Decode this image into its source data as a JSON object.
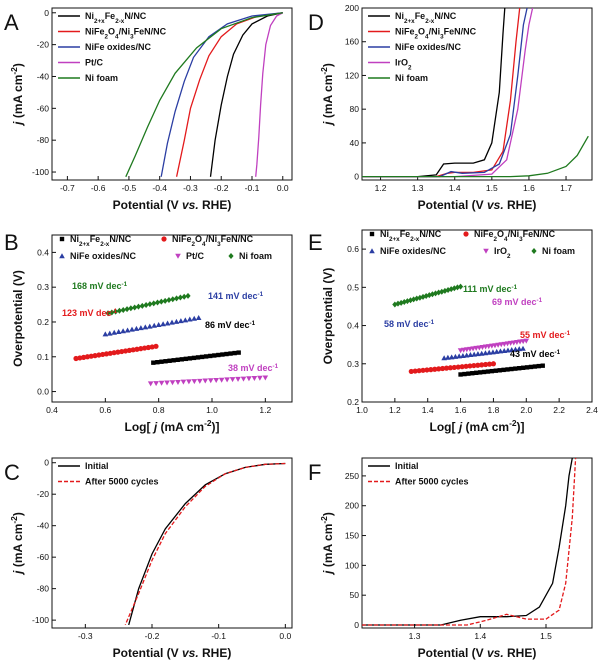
{
  "chart_data": [
    {
      "panel": "A",
      "type": "line",
      "xlabel": "Potential (V vs. RHE)",
      "ylabel": "j (mA cm-2)",
      "xlim": [
        -0.75,
        0.03
      ],
      "ylim": [
        -105,
        3
      ],
      "xticks": [
        "-0.7",
        "-0.6",
        "-0.5",
        "-0.4",
        "-0.3",
        "-0.2",
        "-0.1",
        "0.0"
      ],
      "yticks": [
        "0",
        "-20",
        "-40",
        "-60",
        "-80",
        "-100"
      ],
      "legend_position": "top-left",
      "series": [
        {
          "name": "Ni2+xFe2-xN/NC",
          "color": "#000000",
          "x": [
            0.0,
            -0.05,
            -0.1,
            -0.13,
            -0.16,
            -0.18,
            -0.2,
            -0.22,
            -0.235
          ],
          "y": [
            0,
            -2,
            -7,
            -14,
            -26,
            -40,
            -58,
            -80,
            -103
          ]
        },
        {
          "name": "NiFe2O4/Ni3FeN/NC",
          "color": "#e31a1c",
          "x": [
            0.0,
            -0.08,
            -0.15,
            -0.2,
            -0.24,
            -0.27,
            -0.3,
            -0.32,
            -0.345
          ],
          "y": [
            0,
            -2,
            -7,
            -15,
            -27,
            -42,
            -60,
            -80,
            -103
          ]
        },
        {
          "name": "NiFe oxides/NC",
          "color": "#2b3ea3",
          "x": [
            0.0,
            -0.1,
            -0.18,
            -0.24,
            -0.29,
            -0.32,
            -0.35,
            -0.375,
            -0.395
          ],
          "y": [
            0,
            -2,
            -7,
            -15,
            -28,
            -43,
            -62,
            -82,
            -103
          ]
        },
        {
          "name": "Pt/C",
          "color": "#c040c0",
          "x": [
            0.0,
            -0.02,
            -0.04,
            -0.055,
            -0.065,
            -0.072,
            -0.078,
            -0.084,
            -0.088
          ],
          "y": [
            0,
            -2,
            -8,
            -20,
            -38,
            -58,
            -78,
            -95,
            -103
          ]
        },
        {
          "name": "Ni foam",
          "color": "#1f7a1f",
          "x": [
            0.0,
            -0.1,
            -0.2,
            -0.28,
            -0.35,
            -0.4,
            -0.44,
            -0.48,
            -0.51
          ],
          "y": [
            0,
            -3,
            -10,
            -22,
            -38,
            -55,
            -72,
            -90,
            -103
          ]
        }
      ]
    },
    {
      "panel": "B",
      "type": "scatter",
      "xlabel": "Log[ j (mA cm-2)]",
      "ylabel": "Overpotential (V)",
      "xlim": [
        0.4,
        1.3
      ],
      "ylim": [
        -0.03,
        0.45
      ],
      "xticks": [
        "0.4",
        "0.6",
        "0.8",
        "1.0",
        "1.2"
      ],
      "yticks": [
        "0.0",
        "0.1",
        "0.2",
        "0.3",
        "0.4"
      ],
      "legend_position": "top",
      "series": [
        {
          "name": "Ni2+xFe2-xN/NC",
          "color": "#000000",
          "marker": "square",
          "x": [
            0.78,
            1.1
          ],
          "y": [
            0.083,
            0.112
          ],
          "slope_label": "86 mV dec-1"
        },
        {
          "name": "NiFe2O4/Ni3FeN/NC",
          "color": "#e31a1c",
          "marker": "circle",
          "x": [
            0.49,
            0.79
          ],
          "y": [
            0.095,
            0.13
          ],
          "slope_label": "123 mV dec-1"
        },
        {
          "name": "NiFe oxides/NC",
          "color": "#2b3ea3",
          "marker": "triangle-up",
          "x": [
            0.6,
            0.95
          ],
          "y": [
            0.165,
            0.212
          ],
          "slope_label": "141 mV dec-1"
        },
        {
          "name": "Pt/C",
          "color": "#c040c0",
          "marker": "triangle-down",
          "x": [
            0.77,
            1.2
          ],
          "y": [
            0.023,
            0.04
          ],
          "slope_label": "38 mV dec-1"
        },
        {
          "name": "Ni foam",
          "color": "#1f7a1f",
          "marker": "diamond",
          "x": [
            0.61,
            0.91
          ],
          "y": [
            0.225,
            0.275
          ],
          "slope_label": "168 mV dec-1"
        }
      ]
    },
    {
      "panel": "C",
      "type": "line",
      "xlabel": "Potential (V vs. RHE)",
      "ylabel": "j (mA cm-2)",
      "xlim": [
        -0.35,
        0.01
      ],
      "ylim": [
        -105,
        3
      ],
      "xticks": [
        "-0.3",
        "-0.2",
        "-0.1",
        "0.0"
      ],
      "yticks": [
        "0",
        "-20",
        "-40",
        "-60",
        "-80",
        "-100"
      ],
      "legend_position": "top-left",
      "series": [
        {
          "name": "Initial",
          "color": "#000000",
          "dash": false,
          "x": [
            0.0,
            -0.03,
            -0.06,
            -0.09,
            -0.12,
            -0.15,
            -0.18,
            -0.2,
            -0.22,
            -0.235
          ],
          "y": [
            -0.5,
            -1,
            -3,
            -7,
            -14,
            -26,
            -42,
            -58,
            -80,
            -103
          ]
        },
        {
          "name": "After 5000 cycles",
          "color": "#e31a1c",
          "dash": true,
          "x": [
            0.0,
            -0.03,
            -0.06,
            -0.09,
            -0.12,
            -0.15,
            -0.18,
            -0.2,
            -0.22,
            -0.24
          ],
          "y": [
            -0.5,
            -1,
            -3,
            -7,
            -15,
            -28,
            -45,
            -62,
            -83,
            -103
          ]
        }
      ]
    },
    {
      "panel": "D",
      "type": "line",
      "xlabel": "Potential (V vs. RHE)",
      "ylabel": "j (mA cm-2)",
      "xlim": [
        1.15,
        1.77
      ],
      "ylim": [
        -4,
        200
      ],
      "xticks": [
        "1.2",
        "1.3",
        "1.4",
        "1.5",
        "1.6",
        "1.7"
      ],
      "yticks": [
        "0",
        "40",
        "80",
        "120",
        "160",
        "200"
      ],
      "legend_position": "top-left",
      "series": [
        {
          "name": "Ni2+xFe2-xN/NC",
          "color": "#000000",
          "x": [
            1.15,
            1.3,
            1.35,
            1.37,
            1.4,
            1.45,
            1.48,
            1.5,
            1.52,
            1.53,
            1.535
          ],
          "y": [
            0,
            0,
            2,
            15,
            16,
            16,
            20,
            40,
            100,
            170,
            200
          ]
        },
        {
          "name": "NiFe2O4/Ni3FeN/NC",
          "color": "#e31a1c",
          "x": [
            1.15,
            1.35,
            1.38,
            1.4,
            1.45,
            1.5,
            1.53,
            1.55,
            1.565,
            1.575
          ],
          "y": [
            0,
            0,
            4,
            5,
            5,
            8,
            30,
            90,
            160,
            200
          ]
        },
        {
          "name": "NiFe oxides/NC",
          "color": "#2b3ea3",
          "x": [
            1.15,
            1.36,
            1.39,
            1.42,
            1.48,
            1.52,
            1.55,
            1.57,
            1.585,
            1.595
          ],
          "y": [
            0,
            0,
            6,
            4,
            5,
            15,
            50,
            120,
            180,
            200
          ]
        },
        {
          "name": "IrO2",
          "color": "#c040c0",
          "x": [
            1.15,
            1.4,
            1.5,
            1.54,
            1.57,
            1.59,
            1.6,
            1.61
          ],
          "y": [
            0,
            0,
            3,
            20,
            80,
            150,
            180,
            200
          ]
        },
        {
          "name": "Ni foam",
          "color": "#1f7a1f",
          "x": [
            1.15,
            1.55,
            1.6,
            1.65,
            1.7,
            1.73,
            1.76
          ],
          "y": [
            0,
            0,
            1,
            4,
            12,
            25,
            48
          ]
        }
      ]
    },
    {
      "panel": "E",
      "type": "scatter",
      "xlabel": "Log[ j (mA cm-2)]",
      "ylabel": "Overpotential (V)",
      "xlim": [
        1.0,
        2.4
      ],
      "ylim": [
        0.2,
        0.65
      ],
      "xticks": [
        "1.0",
        "1.2",
        "1.4",
        "1.6",
        "1.8",
        "2.0",
        "2.2",
        "2.4"
      ],
      "yticks": [
        "0.2",
        "0.3",
        "0.4",
        "0.5",
        "0.6"
      ],
      "legend_position": "top",
      "series": [
        {
          "name": "Ni2+xFe2-xN/NC",
          "color": "#000000",
          "marker": "square",
          "x": [
            1.6,
            2.1
          ],
          "y": [
            0.272,
            0.295
          ],
          "slope_label": "43 mV dec-1"
        },
        {
          "name": "NiFe2O4/Ni3FeN/NC",
          "color": "#e31a1c",
          "marker": "circle",
          "x": [
            1.3,
            1.8
          ],
          "y": [
            0.28,
            0.3
          ],
          "slope_label": "55 mV dec-1"
        },
        {
          "name": "NiFe oxides/NC",
          "color": "#2b3ea3",
          "marker": "triangle-up",
          "x": [
            1.5,
            1.98
          ],
          "y": [
            0.315,
            0.34
          ],
          "slope_label": "58 mV dec-1"
        },
        {
          "name": "IrO2",
          "color": "#c040c0",
          "marker": "triangle-down",
          "x": [
            1.6,
            2.0
          ],
          "y": [
            0.335,
            0.36
          ],
          "slope_label": "69 mV dec-1"
        },
        {
          "name": "Ni foam",
          "color": "#1f7a1f",
          "marker": "diamond",
          "x": [
            1.2,
            1.6
          ],
          "y": [
            0.455,
            0.502
          ],
          "slope_label": "111 mV dec-1"
        }
      ]
    },
    {
      "panel": "F",
      "type": "line",
      "xlabel": "Potential (V vs. RHE)",
      "ylabel": "j (mA cm-2)",
      "xlim": [
        1.22,
        1.57
      ],
      "ylim": [
        -5,
        280
      ],
      "xticks": [
        "1.3",
        "1.4",
        "1.5"
      ],
      "yticks": [
        "0",
        "50",
        "100",
        "150",
        "200",
        "250"
      ],
      "legend_position": "top-left",
      "series": [
        {
          "name": "Initial",
          "color": "#000000",
          "dash": false,
          "x": [
            1.22,
            1.34,
            1.37,
            1.4,
            1.44,
            1.47,
            1.49,
            1.51,
            1.52,
            1.53,
            1.535,
            1.54
          ],
          "y": [
            0,
            0,
            8,
            14,
            14,
            16,
            30,
            70,
            130,
            200,
            250,
            280
          ]
        },
        {
          "name": "After 5000 cycles",
          "color": "#e31a1c",
          "dash": true,
          "x": [
            1.22,
            1.38,
            1.41,
            1.44,
            1.47,
            1.5,
            1.52,
            1.53,
            1.54,
            1.545
          ],
          "y": [
            0,
            0,
            8,
            18,
            10,
            10,
            25,
            70,
            180,
            280
          ]
        }
      ]
    }
  ]
}
